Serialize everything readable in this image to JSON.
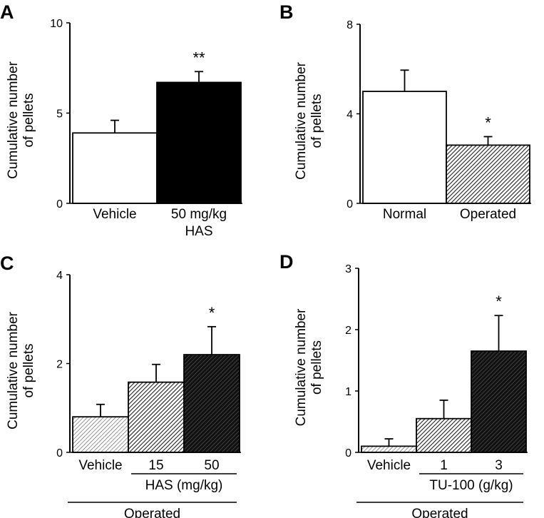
{
  "colors": {
    "white": "#ffffff",
    "black": "#000000",
    "light_hatch": "#b8b8b8",
    "mid_hatch": "#6e6e6e",
    "dark_hatch": "#2a2a2a"
  },
  "chart_data": [
    {
      "panel": "A",
      "type": "bar",
      "ylabel": [
        "Cumulative number",
        "of pellets"
      ],
      "ylim": [
        0,
        10
      ],
      "yticks": [
        "0",
        "5",
        "10"
      ],
      "categories": [
        "Vehicle",
        "50 mg/kg HAS"
      ],
      "category_lines": [
        [
          "Vehicle"
        ],
        [
          "50 mg/kg",
          "HAS"
        ]
      ],
      "values": [
        3.9,
        6.7
      ],
      "errors": [
        0.7,
        0.6
      ],
      "fills": [
        "white",
        "black"
      ],
      "significance": [
        "",
        "**"
      ],
      "groups": []
    },
    {
      "panel": "B",
      "type": "bar",
      "ylabel": [
        "Cumulative number",
        "of pellets"
      ],
      "ylim": [
        0,
        8
      ],
      "yticks": [
        "0",
        "4",
        "8"
      ],
      "categories": [
        "Normal",
        "Operated"
      ],
      "category_lines": [
        [
          "Normal"
        ],
        [
          "Operated"
        ]
      ],
      "values": [
        5.0,
        2.6
      ],
      "errors": [
        0.95,
        0.38
      ],
      "fills": [
        "white",
        "mid_hatch"
      ],
      "significance": [
        "",
        "*"
      ],
      "groups": []
    },
    {
      "panel": "C",
      "type": "bar",
      "ylabel": [
        "Cumulative number",
        "of pellets"
      ],
      "ylim": [
        0,
        4
      ],
      "yticks": [
        "0",
        "2",
        "4"
      ],
      "categories": [
        "Vehicle",
        "15",
        "50"
      ],
      "category_lines": [
        [
          "Vehicle"
        ],
        [
          "15"
        ],
        [
          "50"
        ]
      ],
      "values": [
        0.8,
        1.58,
        2.2
      ],
      "errors": [
        0.28,
        0.4,
        0.63
      ],
      "fills": [
        "light_hatch",
        "mid_hatch",
        "dark_hatch"
      ],
      "significance": [
        "",
        "",
        "*"
      ],
      "groups": [
        {
          "label": "HAS (mg/kg)",
          "from": 1,
          "to": 2
        },
        {
          "label": "Operated",
          "from": 0,
          "to": 2
        }
      ]
    },
    {
      "panel": "D",
      "type": "bar",
      "ylabel": [
        "Cumulative number",
        "of pellets"
      ],
      "ylim": [
        0,
        3
      ],
      "yticks": [
        "0",
        "1",
        "2",
        "3"
      ],
      "categories": [
        "Vehicle",
        "1",
        "3"
      ],
      "category_lines": [
        [
          "Vehicle"
        ],
        [
          "1"
        ],
        [
          "3"
        ]
      ],
      "values": [
        0.1,
        0.55,
        1.65
      ],
      "errors": [
        0.12,
        0.3,
        0.58
      ],
      "fills": [
        "light_hatch",
        "mid_hatch",
        "dark_hatch"
      ],
      "significance": [
        "",
        "",
        "*"
      ],
      "groups": [
        {
          "label": "TU-100 (g/kg)",
          "from": 1,
          "to": 2
        },
        {
          "label": "Operated",
          "from": 0,
          "to": 2
        }
      ]
    }
  ]
}
